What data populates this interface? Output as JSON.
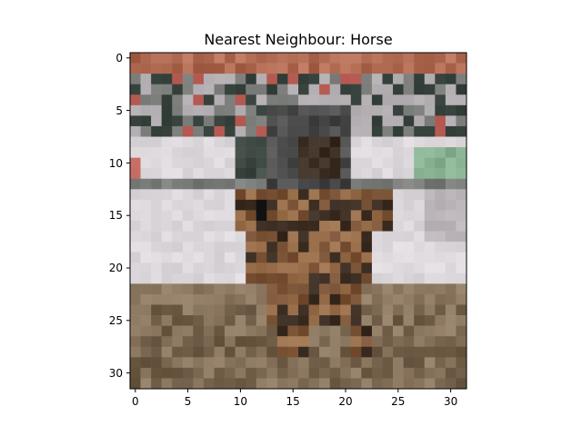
{
  "figure": {
    "title": "Nearest Neighbour: Horse"
  },
  "axes": {
    "x_ticks": [
      "0",
      "5",
      "10",
      "15",
      "20",
      "25",
      "30"
    ],
    "y_ticks": [
      "0",
      "5",
      "10",
      "15",
      "20",
      "25",
      "30"
    ]
  },
  "image": {
    "grid_size": 32,
    "palette": {
      "sky": "#b06a52",
      "crowd_dark": "#3f4a45",
      "crowd_mid": "#7b7d7a",
      "crowd_light": "#a7a2a6",
      "wall": "#dcd8dc",
      "wall_shadow": "#bcb6ba",
      "ground_dark": "#6d5b46",
      "ground_light": "#8e7a62",
      "horse_dark": "#3c2e22",
      "horse_mid": "#7a5336",
      "horse_light": "#9a6f4c",
      "rider": "#4b4b4b",
      "accent_green": "#8ab393",
      "accent_red": "#c56a62"
    }
  }
}
